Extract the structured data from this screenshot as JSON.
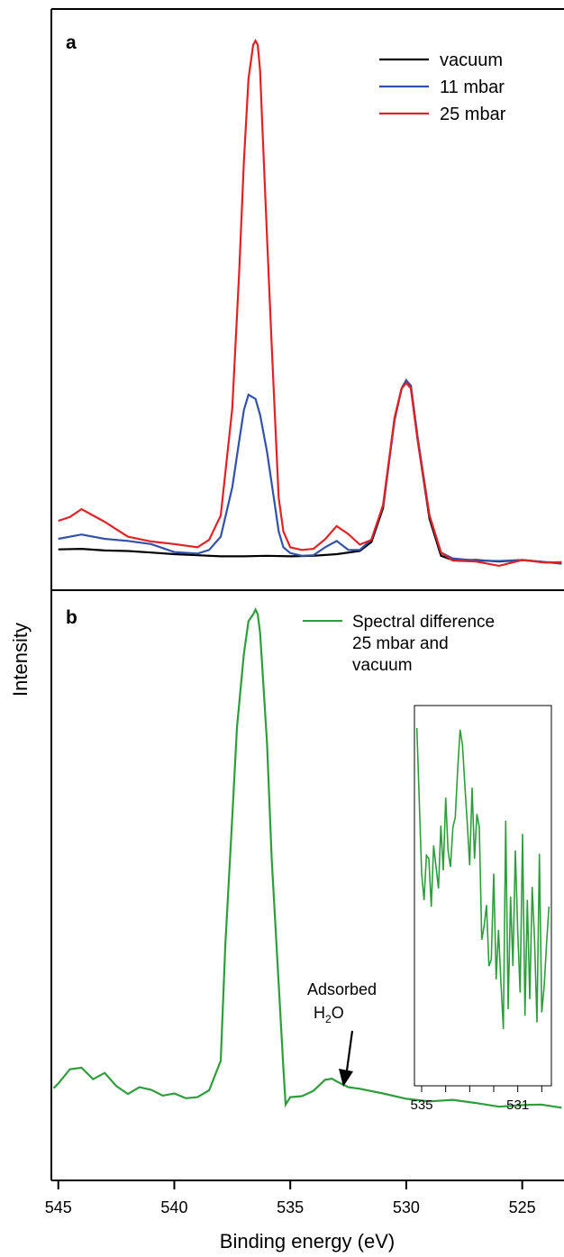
{
  "chart_data": [
    {
      "type": "line",
      "panel_label": "a",
      "xlabel": "Binding energy (eV)",
      "ylabel": "Intensity",
      "xlim": [
        545.3,
        523.2
      ],
      "ylim": [
        0,
        100
      ],
      "x_reversed": true,
      "legend_position": "top-right",
      "series": [
        {
          "name": "vacuum",
          "color": "#000000",
          "x": [
            545,
            544,
            543,
            542,
            541,
            540,
            539,
            538,
            537,
            536,
            535,
            534,
            533,
            532,
            531.5,
            531,
            530.5,
            530.2,
            530,
            529.8,
            529.5,
            529,
            528.5,
            528,
            527,
            526,
            525,
            524,
            523.3
          ],
          "y": [
            2.6,
            2.7,
            2.4,
            2.3,
            2.0,
            1.7,
            1.5,
            1.3,
            1.3,
            1.4,
            1.3,
            1.4,
            1.7,
            2.3,
            4.0,
            10.4,
            27.4,
            33.0,
            34.5,
            33.0,
            23.0,
            8.4,
            1.4,
            0.6,
            0.6,
            0.3,
            0.6,
            0.2,
            0.1
          ]
        },
        {
          "name": "11 mbar",
          "color": "#3152a8",
          "x": [
            545,
            544,
            543,
            542,
            541,
            540,
            539,
            538.5,
            538,
            537.5,
            537.2,
            537,
            536.8,
            536.5,
            536.3,
            536,
            535.7,
            535.5,
            535.3,
            535,
            534.5,
            534,
            533.5,
            533,
            532.5,
            532,
            531.5,
            531,
            530.5,
            530.2,
            530,
            529.8,
            529.5,
            529,
            528.5,
            528,
            527,
            526,
            525,
            524,
            523.3
          ],
          "y": [
            4.6,
            5.4,
            4.6,
            4.2,
            3.6,
            2.1,
            1.8,
            2.5,
            5.0,
            14.3,
            23.1,
            28.9,
            31.8,
            31.0,
            28.0,
            21.0,
            12.0,
            6.0,
            3.0,
            1.9,
            1.4,
            1.5,
            3.0,
            4.2,
            2.5,
            2.5,
            4.5,
            10.8,
            27.0,
            33.0,
            34.5,
            33.5,
            23.5,
            9.0,
            2.0,
            0.9,
            0.5,
            0.4,
            0.6,
            0.2,
            -0.1
          ]
        },
        {
          "name": "25 mbar",
          "color": "#e02226",
          "x": [
            545,
            544.5,
            544,
            543,
            542,
            541,
            540,
            539,
            538.5,
            538,
            537.5,
            537.2,
            537,
            536.8,
            536.6,
            536.5,
            536.4,
            536.3,
            536.2,
            536,
            535.8,
            535.5,
            535.3,
            535,
            534.5,
            534,
            533.5,
            533,
            532.5,
            532,
            531.5,
            531,
            530.5,
            530.2,
            530,
            529.8,
            529.5,
            529,
            528.5,
            528,
            527,
            526,
            525,
            524,
            523.3
          ],
          "y": [
            8.0,
            8.7,
            10.2,
            7.8,
            5.0,
            4.1,
            3.6,
            3.0,
            4.4,
            9.0,
            29.2,
            55.0,
            75.8,
            91.4,
            97.8,
            98.6,
            97.8,
            92.9,
            82.0,
            61.5,
            41.0,
            12.4,
            6.0,
            3.0,
            2.5,
            2.7,
            4.5,
            7.0,
            5.5,
            3.5,
            4.4,
            11.0,
            27.5,
            33.0,
            34.0,
            33.0,
            23.0,
            9.0,
            2.0,
            0.5,
            0.3,
            -0.5,
            0.6,
            0.1,
            0.2
          ]
        }
      ]
    },
    {
      "type": "line",
      "panel_label": "b",
      "xlabel": "Binding energy (eV)",
      "xlim": [
        545.3,
        523.2
      ],
      "ylim": [
        0,
        100
      ],
      "x_reversed": true,
      "xticks": [
        545,
        540,
        535,
        530,
        525
      ],
      "legend_position": "top-right",
      "annotation": {
        "text_line1": "Adsorbed",
        "text_line2_main": "H",
        "text_line2_sub": "2",
        "text_line2_end": "O",
        "arrow_target_x": 532.9,
        "arrow_target_y": 12.3
      },
      "series": [
        {
          "name": "Spectral difference 25 mbar and vacuum",
          "name_lines": [
            "Spectral difference",
            "25 mbar and",
            "vacuum"
          ],
          "color": "#2e9e3c",
          "x": [
            545.2,
            545,
            544.5,
            544,
            543.5,
            543,
            542.5,
            542,
            541.5,
            541,
            540.5,
            540,
            539.5,
            539,
            538.5,
            538,
            537.8,
            537.5,
            537.3,
            537,
            536.8,
            536.6,
            536.5,
            536.4,
            536.3,
            536.2,
            536,
            535.8,
            535.5,
            535.3,
            535.2,
            535,
            534.5,
            534,
            533.5,
            533.2,
            533,
            532.5,
            532,
            531,
            530,
            529,
            528,
            527,
            526,
            525,
            524.2,
            523.3
          ],
          "y": [
            8.6,
            9.5,
            12.2,
            12.5,
            10.3,
            11.5,
            9.0,
            7.5,
            8.8,
            8.3,
            7.2,
            7.6,
            6.7,
            6.9,
            8.2,
            13.8,
            35.8,
            60.0,
            77.0,
            91.0,
            97.2,
            98.5,
            99.4,
            98.5,
            95.0,
            88.0,
            74.0,
            52.0,
            28.5,
            12.5,
            5.5,
            6.9,
            7.1,
            8.1,
            10.2,
            10.4,
            9.9,
            8.8,
            8.5,
            7.6,
            6.6,
            6.1,
            6.4,
            5.8,
            5.1,
            5.4,
            5.5,
            4.9
          ]
        }
      ]
    },
    {
      "type": "line",
      "panel_label": "inset",
      "xlim": [
        535.3,
        529.6
      ],
      "ylim": [
        0,
        100
      ],
      "x_reversed": true,
      "xticks": [
        535,
        531
      ],
      "series": [
        {
          "color": "#2e9e3c",
          "x": [
            535.2,
            535.0,
            534.9,
            534.8,
            534.7,
            534.6,
            534.5,
            534.4,
            534.3,
            534.2,
            534.1,
            534.0,
            533.9,
            533.8,
            533.7,
            533.6,
            533.5,
            533.4,
            533.3,
            533.2,
            533.1,
            533.0,
            532.9,
            532.8,
            532.7,
            532.6,
            532.5,
            532.4,
            532.3,
            532.2,
            532.1,
            532.0,
            531.9,
            531.8,
            531.7,
            531.6,
            531.5,
            531.4,
            531.3,
            531.2,
            531.1,
            531.0,
            530.9,
            530.8,
            530.7,
            530.6,
            530.5,
            530.4,
            530.3,
            530.2,
            530.1,
            530.0,
            529.9,
            529.8,
            529.7
          ],
          "y": [
            100,
            56.0,
            48.0,
            61.5,
            60.5,
            46.0,
            64.5,
            58.0,
            51.5,
            70.5,
            57.0,
            79.0,
            63.0,
            58.0,
            70.0,
            73.0,
            87.5,
            99.5,
            95.0,
            82.5,
            71.0,
            58.5,
            82.0,
            60.5,
            74.0,
            70.0,
            36.0,
            40.0,
            46.5,
            28.0,
            30.0,
            56.0,
            24.0,
            39.0,
            23.0,
            9.0,
            72.0,
            15.0,
            49.0,
            28.0,
            63.0,
            38.0,
            20.0,
            68.0,
            13.0,
            48.0,
            18.0,
            52.0,
            36.0,
            11.0,
            62.0,
            14.0,
            22.0,
            35.0,
            46.0
          ]
        }
      ]
    }
  ]
}
